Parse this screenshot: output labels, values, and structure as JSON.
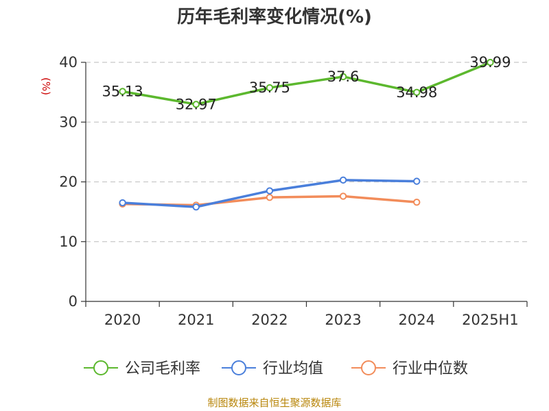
{
  "chart_data": {
    "type": "line",
    "title": "历年毛利率变化情况(%)",
    "ylabel": "(%)",
    "categories": [
      "2020",
      "2021",
      "2022",
      "2023",
      "2024",
      "2025H1"
    ],
    "ylim": [
      0,
      40
    ],
    "yticks": [
      0,
      10,
      20,
      30,
      40
    ],
    "grid": true,
    "legend_position": "bottom",
    "series": [
      {
        "name": "公司毛利率",
        "color": "#5cb82e",
        "values": [
          35.13,
          32.97,
          35.75,
          37.6,
          34.98,
          39.99
        ],
        "labels": [
          "35.13",
          "32.97",
          "35.75",
          "37.6",
          "34.98",
          "39.99"
        ]
      },
      {
        "name": "行业均值",
        "color": "#4a7fdb",
        "values": [
          16.5,
          15.8,
          18.5,
          20.3,
          20.1,
          null
        ]
      },
      {
        "name": "行业中位数",
        "color": "#f28c5a",
        "values": [
          16.3,
          16.1,
          17.4,
          17.6,
          16.6,
          null
        ]
      }
    ],
    "source": "制图数据来自恒生聚源数据库"
  }
}
